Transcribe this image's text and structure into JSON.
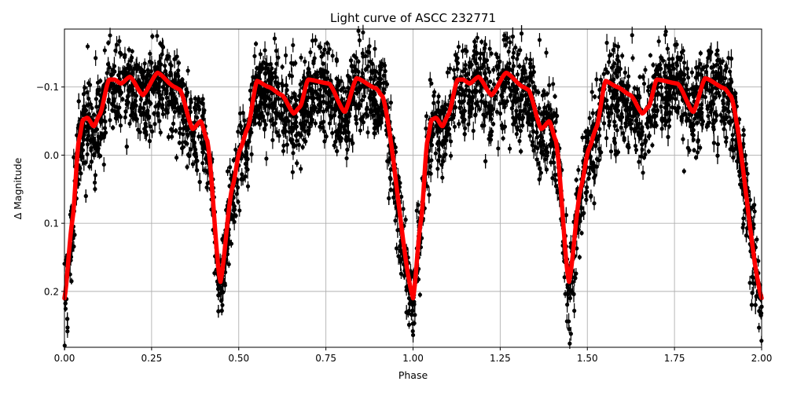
{
  "chart_data": {
    "type": "scatter",
    "title": "Light curve of ASCC 232771",
    "xlabel": "Phase",
    "ylabel": "Δ Magnitude",
    "xlim": [
      0.0,
      2.0
    ],
    "ylim": [
      0.282,
      -0.185
    ],
    "y_inverted": true,
    "grid": true,
    "x_ticks": [
      "0.00",
      "0.25",
      "0.50",
      "0.75",
      "1.00",
      "1.25",
      "1.50",
      "1.75",
      "2.00"
    ],
    "x_tick_values": [
      0,
      0.25,
      0.5,
      0.75,
      1.0,
      1.25,
      1.5,
      1.75,
      2.0
    ],
    "y_ticks": [
      "−0.1",
      "0.0",
      "0.1",
      "0.2"
    ],
    "y_tick_values": [
      -0.1,
      0.0,
      0.1,
      0.2
    ],
    "observations": {
      "marker": "circle with vertical error bar",
      "color": "#000000",
      "approx_scatter_about_model": 0.03
    },
    "model": {
      "color": "#ff0000",
      "period_repeats": 2,
      "phase": [
        0.0,
        0.023,
        0.041,
        0.053,
        0.066,
        0.084,
        0.101,
        0.128,
        0.143,
        0.162,
        0.188,
        0.225,
        0.267,
        0.316,
        0.331,
        0.368,
        0.391,
        0.41,
        0.447,
        0.481,
        0.504,
        0.526,
        0.552,
        0.586,
        0.624,
        0.658,
        0.676,
        0.699,
        0.759,
        0.804,
        0.838,
        0.894,
        0.913,
        1.0
      ],
      "magnitude": [
        0.21,
        0.095,
        -0.021,
        -0.052,
        -0.055,
        -0.042,
        -0.059,
        -0.111,
        -0.111,
        -0.105,
        -0.115,
        -0.088,
        -0.121,
        -0.1,
        -0.096,
        -0.038,
        -0.05,
        -0.021,
        0.187,
        0.048,
        -0.009,
        -0.04,
        -0.109,
        -0.1,
        -0.088,
        -0.061,
        -0.071,
        -0.111,
        -0.105,
        -0.063,
        -0.113,
        -0.098,
        -0.086,
        0.21
      ]
    }
  }
}
